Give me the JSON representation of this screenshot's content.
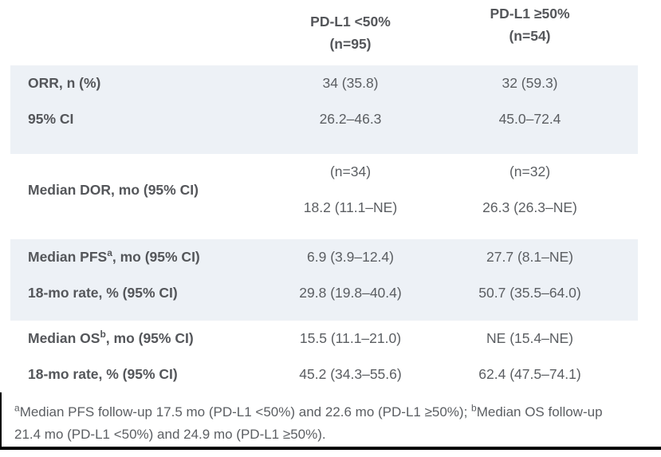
{
  "page": {
    "band_color": "#edf1f6",
    "bold_text_color": "#54565a",
    "body_text_color": "#5b5e62",
    "rule_color": "#000000"
  },
  "table": {
    "column_headers": [
      {
        "title": "PD-L1 <50%",
        "n": "(n=95)"
      },
      {
        "title": "PD-L1 ≥50%",
        "n": "(n=54)"
      }
    ],
    "sections": [
      {
        "name": "orr",
        "shaded": true,
        "rows": [
          {
            "label": "ORR, n (%)",
            "values": [
              "34 (35.8)",
              "32 (59.3)"
            ]
          },
          {
            "label": "95% CI",
            "values": [
              "26.2–46.3",
              "45.0–72.4"
            ]
          }
        ]
      },
      {
        "name": "dor",
        "shaded": false,
        "label": "Median DOR, mo (95% CI)",
        "rows": [
          {
            "values": [
              "(n=34)",
              "(n=32)"
            ]
          },
          {
            "values": [
              "18.2 (11.1–NE)",
              "26.3 (26.3–NE)"
            ]
          }
        ]
      },
      {
        "name": "pfs",
        "shaded": true,
        "rows": [
          {
            "label_pre": "Median PFS",
            "label_sup": "a",
            "label_post": ", mo (95% CI)",
            "values": [
              "6.9 (3.9–12.4)",
              "27.7 (8.1–NE)"
            ]
          },
          {
            "label": "18-mo rate, % (95% CI)",
            "values": [
              "29.8 (19.8–40.4)",
              "50.7 (35.5–64.0)"
            ]
          }
        ]
      },
      {
        "name": "os",
        "shaded": false,
        "rows": [
          {
            "label_pre": "Median OS",
            "label_sup": "b",
            "label_post": ", mo (95% CI)",
            "values": [
              "15.5 (11.1–21.0)",
              "NE (15.4–NE)"
            ]
          },
          {
            "label": "18-mo rate, % (95% CI)",
            "values": [
              "45.2 (34.3–55.6)",
              "62.4 (47.5–74.1)"
            ]
          }
        ]
      }
    ]
  },
  "footnote": {
    "sup_a": "a",
    "text_a": "Median PFS follow-up 17.5 mo (PD-L1 <50%) and 22.6 mo (PD-L1 ≥50%); ",
    "sup_b": "b",
    "text_b": "Median OS follow-up 21.4 mo (PD-L1 <50%) and 24.9 mo (PD-L1 ≥50%)."
  }
}
